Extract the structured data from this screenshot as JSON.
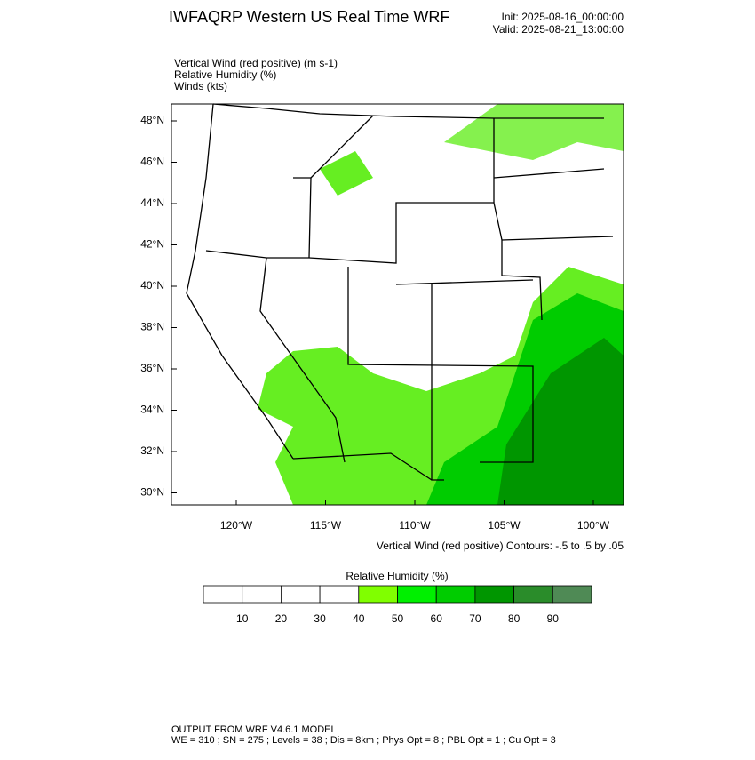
{
  "header": {
    "title": "IWFAQRP Western US Real Time WRF",
    "init": "Init: 2025-08-16_00:00:00",
    "valid": "Valid: 2025-08-21_13:00:00"
  },
  "fields": [
    "Vertical Wind (red positive)   (m s-1)",
    "Relative Humidity   (%)",
    "Winds   (kts)"
  ],
  "map": {
    "lat_labels": [
      "48°N",
      "46°N",
      "44°N",
      "42°N",
      "40°N",
      "38°N",
      "36°N",
      "34°N",
      "32°N",
      "30°N"
    ],
    "lon_labels": [
      "120°W",
      "115°W",
      "110°W",
      "105°W",
      "100°W"
    ],
    "contour_note": "Vertical Wind (red positive) Contours: -.5 to .5 by .05"
  },
  "colorbar": {
    "title": "Relative Humidity  (%)",
    "labels": [
      10,
      20,
      30,
      40,
      50,
      60,
      70,
      80,
      90
    ],
    "colors": [
      "#ffffff",
      "#ffffff",
      "#ffffff",
      "#ffffff",
      "#80ff00",
      "#00f000",
      "#00cc00",
      "#009600",
      "#2a8c2a",
      "#4f8a55"
    ]
  },
  "footer": [
    "OUTPUT FROM WRF V4.6.1 MODEL",
    "WE = 310 ; SN = 275 ; Levels = 38 ; Dis = 8km ; Phys Opt = 8 ; PBL Opt = 1 ; Cu Opt = 3"
  ]
}
